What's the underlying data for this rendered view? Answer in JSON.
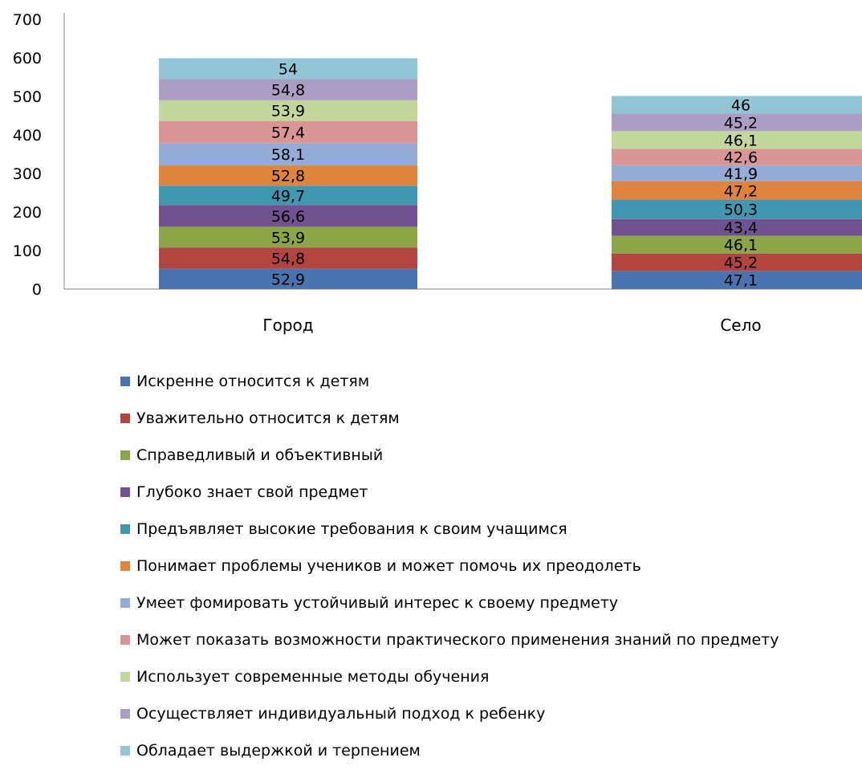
{
  "chart_data": {
    "type": "bar",
    "stacked": true,
    "categories": [
      "Город",
      "Село"
    ],
    "ylim": [
      0,
      700
    ],
    "yticks": [
      "0",
      "100",
      "200",
      "300",
      "400",
      "500",
      "600",
      "700"
    ],
    "grid": false,
    "legend_position": "bottom",
    "series": [
      {
        "name": "Искренне относится к детям",
        "color": "#4a74b0",
        "values": [
          52.9,
          47.1
        ],
        "labels": [
          "52,9",
          "47,1"
        ]
      },
      {
        "name": "Уважительно относится к детям",
        "color": "#b2453f",
        "values": [
          54.8,
          45.2
        ],
        "labels": [
          "54,8",
          "45,2"
        ]
      },
      {
        "name": "Справедливый и объективный",
        "color": "#8ba547",
        "values": [
          53.9,
          46.1
        ],
        "labels": [
          "53,9",
          "46,1"
        ]
      },
      {
        "name": "Глубоко знает свой предмет",
        "color": "#705290",
        "values": [
          56.6,
          43.4
        ],
        "labels": [
          "56,6",
          "43,4"
        ]
      },
      {
        "name": "Предъявляет высокие требования к своим учащимся",
        "color": "#3f98b0",
        "values": [
          49.7,
          50.3
        ],
        "labels": [
          "49,7",
          "50,3"
        ]
      },
      {
        "name": "Понимает проблемы учеников и может помочь их преодолеть",
        "color": "#e0833c",
        "values": [
          52.8,
          47.2
        ],
        "labels": [
          "52,8",
          "47,2"
        ]
      },
      {
        "name": "Умеет фомировать устойчивый интерес к своему предмету",
        "color": "#95acd6",
        "values": [
          58.1,
          41.9
        ],
        "labels": [
          "58,1",
          "41,9"
        ]
      },
      {
        "name": "Может показать возможности практического применения знаний по предмету",
        "color": "#d99694",
        "values": [
          57.4,
          42.6
        ],
        "labels": [
          "57,4",
          "42,6"
        ]
      },
      {
        "name": "Использует современные методы обучения",
        "color": "#c3d69b",
        "values": [
          53.9,
          46.1
        ],
        "labels": [
          "53,9",
          "46,1"
        ]
      },
      {
        "name": "Осуществляет индивидуальный подход к ребенку",
        "color": "#ac9dc4",
        "values": [
          54.8,
          45.2
        ],
        "labels": [
          "54,8",
          "45,2"
        ]
      },
      {
        "name": "Обладает выдержкой и терпением",
        "color": "#92c6d6",
        "values": [
          54,
          46
        ],
        "labels": [
          "54",
          "46"
        ]
      }
    ]
  }
}
